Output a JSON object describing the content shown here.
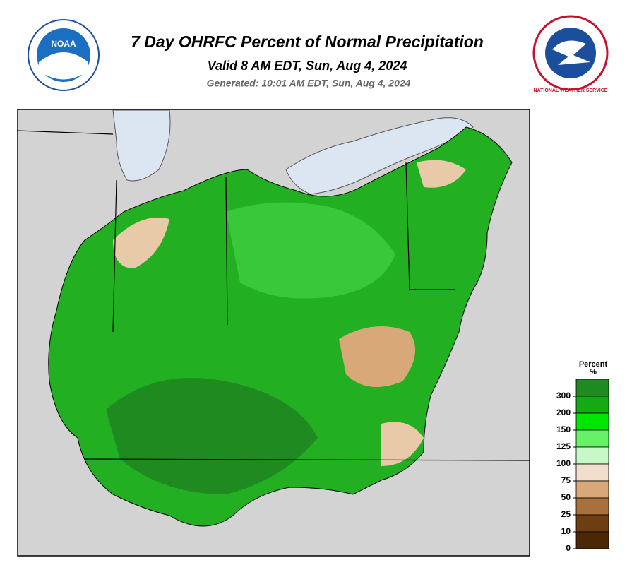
{
  "header": {
    "title": "7 Day OHRFC Percent of Normal Precipitation",
    "valid": "Valid 8 AM EDT, Sun, Aug 4, 2024",
    "generated": "Generated: 10:01 AM EDT, Sun, Aug 4, 2024",
    "left_logo": "NOAA",
    "right_logo": "NATIONAL WEATHER SERVICE"
  },
  "legend": {
    "title": "Percent",
    "unit": "%",
    "ticks": [
      300,
      200,
      150,
      125,
      100,
      75,
      50,
      25,
      10,
      0
    ],
    "colors": [
      "#1f8a1f",
      "#16a916",
      "#00e600",
      "#66f266",
      "#c8f8c8",
      "#f0ddcc",
      "#d9a878",
      "#a8703c",
      "#6e3e12",
      "#4a2806"
    ]
  }
}
